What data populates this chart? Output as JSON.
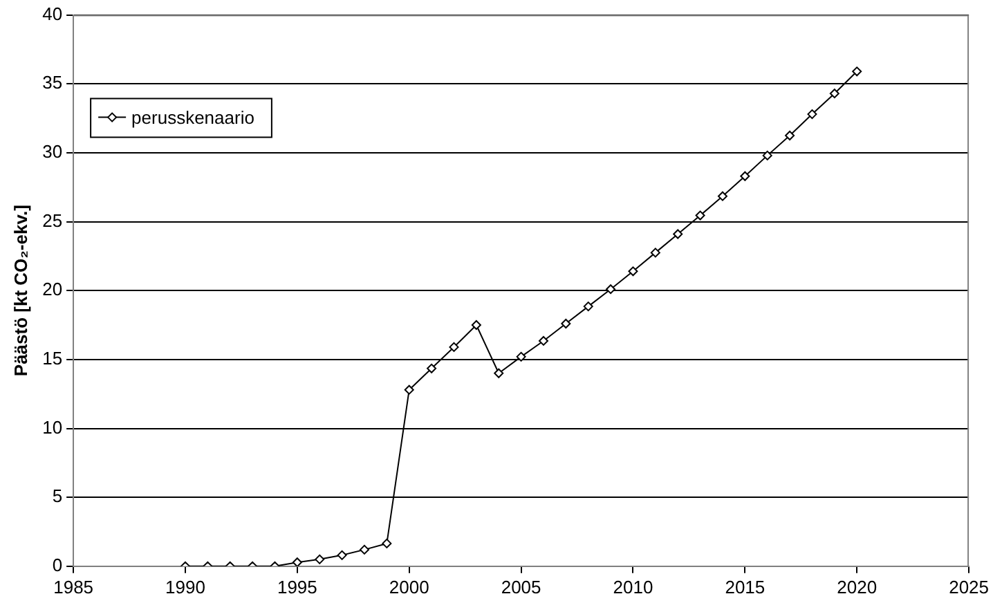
{
  "chart_data": {
    "type": "line",
    "ylabel": "Päästö [kt CO₂-ekv.]",
    "x": [
      1990,
      1991,
      1992,
      1993,
      1994,
      1995,
      1996,
      1997,
      1998,
      1999,
      2000,
      2001,
      2002,
      2003,
      2004,
      2005,
      2006,
      2007,
      2008,
      2009,
      2010,
      2011,
      2012,
      2013,
      2014,
      2015,
      2016,
      2017,
      2018,
      2019,
      2020
    ],
    "series": [
      {
        "name": "perusskenaario",
        "color": "#000000",
        "values": [
          0,
          0,
          0,
          0,
          0,
          0.28,
          0.5,
          0.8,
          1.2,
          1.65,
          12.8,
          14.35,
          15.9,
          17.5,
          14.0,
          15.2,
          16.35,
          17.6,
          18.85,
          20.1,
          21.4,
          22.75,
          24.1,
          25.45,
          26.85,
          28.3,
          29.8,
          31.25,
          32.8,
          34.3,
          35.9
        ]
      }
    ],
    "xlim": [
      1985,
      2025
    ],
    "xticks": [
      1985,
      1990,
      1995,
      2000,
      2005,
      2010,
      2015,
      2020,
      2025
    ],
    "ylim": [
      0,
      40
    ],
    "yticks": [
      0,
      5,
      10,
      15,
      20,
      25,
      30,
      35,
      40
    ],
    "grid": "y",
    "legend": "top left",
    "marker": "diamond",
    "line_style": "solid"
  }
}
